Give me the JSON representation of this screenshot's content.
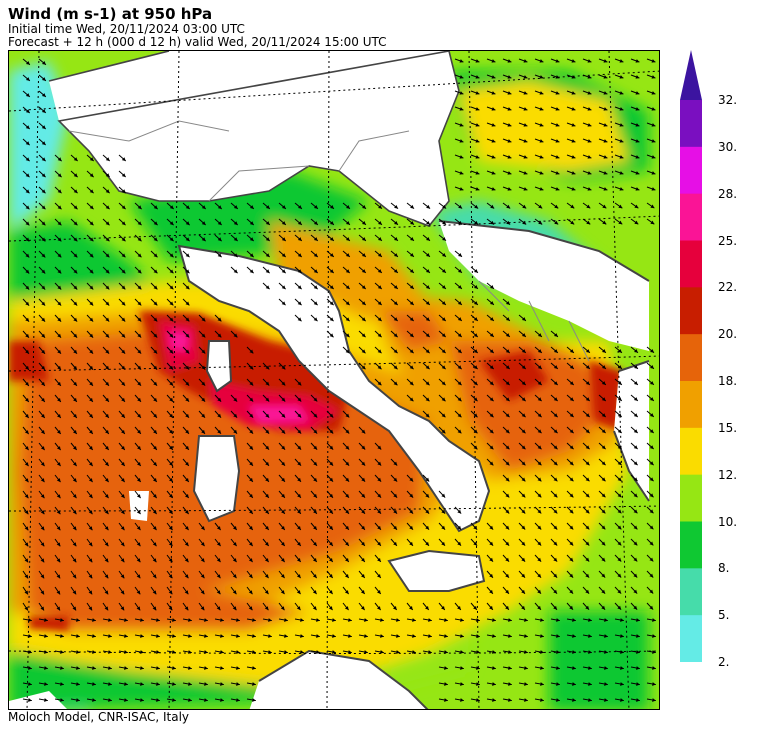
{
  "header": {
    "title": "Wind (m s-1) at 950 hPa",
    "initial_time": "Initial time  Wed, 20/11/2024  03:00 UTC",
    "forecast": "Forecast  +  12 h  (000 d 12 h)  valid Wed, 20/11/2024 15:00 UTC"
  },
  "footer": {
    "credit": "Moloch Model, CNR-ISAC, Italy"
  },
  "colorbar": {
    "labels": [
      "32.",
      "30.",
      "28.",
      "25.",
      "22.",
      "20.",
      "18.",
      "15.",
      "12.",
      "10.",
      "8.",
      "5.",
      "2."
    ],
    "colors": [
      "#7a0fc0",
      "#e60fe6",
      "#fa1496",
      "#e6003c",
      "#c81e00",
      "#e6640a",
      "#f0a000",
      "#fadc00",
      "#96e614",
      "#0fc832",
      "#46dcaa",
      "#64ebe6"
    ],
    "top_arrow_color": "#3c14a0"
  },
  "map": {
    "field": "wind speed 950 hPa",
    "colors": {
      "land_no_data": "#ffffff",
      "coast": "#444444",
      "borders": "#888888",
      "graticule": "#000000"
    }
  }
}
